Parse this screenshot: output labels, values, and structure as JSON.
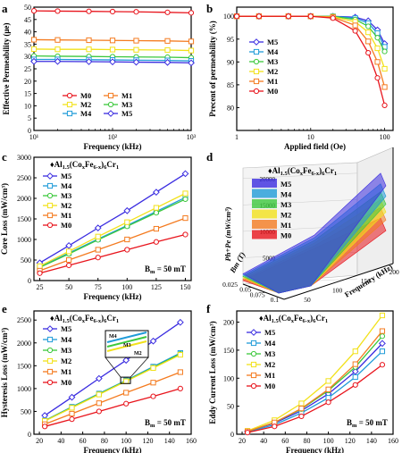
{
  "colors": {
    "M0": "#e8141c",
    "M1": "#f47b20",
    "M2": "#f2e11a",
    "M3": "#3cc83c",
    "M4": "#1f9bd8",
    "M5": "#3a2ce0"
  },
  "chart_data": [
    {
      "panel": "a",
      "type": "line",
      "xlabel": "Frequency (kHz)",
      "ylabel": "Effective Permeability (μe)",
      "xscale": "log",
      "xlim": [
        10,
        1000
      ],
      "ylim": [
        0,
        50
      ],
      "xticks": [
        "10¹",
        "10²",
        "10³"
      ],
      "yticks": [
        0,
        5,
        10,
        15,
        20,
        25,
        30,
        35,
        40,
        45,
        50
      ],
      "legend": {
        "placement": "bottom-center",
        "columns": 2,
        "items": [
          "M0",
          "M1",
          "M2",
          "M3",
          "M4",
          "M5"
        ]
      },
      "x": [
        10,
        20,
        50,
        100,
        200,
        500,
        1000
      ],
      "series": [
        {
          "name": "M0",
          "values": [
            48.5,
            48.4,
            48.3,
            48.2,
            48.1,
            47.9,
            47.7
          ]
        },
        {
          "name": "M1",
          "values": [
            36.8,
            36.7,
            36.6,
            36.5,
            36.4,
            36.3,
            36.1
          ]
        },
        {
          "name": "M2",
          "values": [
            33.0,
            32.9,
            32.9,
            32.8,
            32.7,
            32.6,
            32.4
          ]
        },
        {
          "name": "M3",
          "values": [
            30.2,
            30.1,
            30.0,
            29.9,
            29.8,
            29.7,
            29.5
          ]
        },
        {
          "name": "M4",
          "values": [
            28.8,
            28.8,
            28.7,
            28.6,
            28.5,
            28.4,
            28.2
          ]
        },
        {
          "name": "M5",
          "values": [
            28.0,
            28.0,
            27.9,
            27.8,
            27.7,
            27.6,
            27.4
          ]
        }
      ]
    },
    {
      "panel": "b",
      "type": "line",
      "xlabel": "Applied field (Oe)",
      "ylabel": "Precent of permeability (%)",
      "xscale": "log",
      "xlim": [
        1,
        130
      ],
      "ylim": [
        75,
        102
      ],
      "xticks": [
        "1",
        "10",
        "100"
      ],
      "yticks": [
        80,
        85,
        90,
        95,
        100
      ],
      "legend": {
        "placement": "left",
        "columns": 1,
        "items": [
          "M5",
          "M4",
          "M3",
          "M2",
          "M1",
          "M0"
        ]
      },
      "x": [
        1,
        2,
        5,
        10,
        20,
        40,
        60,
        80,
        100
      ],
      "series": [
        {
          "name": "M5",
          "values": [
            100,
            100,
            100,
            100,
            100,
            99.8,
            99.0,
            97.0,
            94.0
          ]
        },
        {
          "name": "M4",
          "values": [
            100,
            100,
            100,
            100,
            100,
            99.6,
            98.5,
            96.3,
            93.3
          ]
        },
        {
          "name": "M3",
          "values": [
            100,
            100,
            100,
            100,
            100,
            99.3,
            97.8,
            95.3,
            92.3
          ]
        },
        {
          "name": "M2",
          "values": [
            100,
            100,
            100,
            100,
            99.9,
            98.8,
            96.5,
            93.0,
            88.5
          ]
        },
        {
          "name": "M1",
          "values": [
            100,
            100,
            100,
            100,
            99.8,
            98.0,
            94.5,
            90.0,
            84.5
          ]
        },
        {
          "name": "M0",
          "values": [
            100,
            100,
            100,
            100,
            99.6,
            96.8,
            92.0,
            86.5,
            80.5
          ]
        }
      ]
    },
    {
      "panel": "c",
      "type": "line",
      "title": "♦Al1.5(CoxFe6-x)6Cr1",
      "annotation": "Bm = 50 mT",
      "xlabel": "Frequency (kHz)",
      "ylabel": "Core Loss (mW/cm³)",
      "xlim": [
        20,
        155
      ],
      "ylim": [
        0,
        3000
      ],
      "xticks": [
        25,
        50,
        75,
        100,
        125,
        150
      ],
      "yticks": [
        0,
        500,
        1000,
        1500,
        2000,
        2500,
        3000
      ],
      "legend": {
        "placement": "top-left",
        "columns": 1,
        "items": [
          "M5",
          "M4",
          "M3",
          "M2",
          "M1",
          "M0"
        ]
      },
      "x": [
        25,
        50,
        75,
        100,
        125,
        150
      ],
      "series": [
        {
          "name": "M5",
          "values": [
            430,
            850,
            1280,
            1700,
            2150,
            2600
          ]
        },
        {
          "name": "M4",
          "values": [
            330,
            670,
            1010,
            1340,
            1680,
            2020
          ]
        },
        {
          "name": "M3",
          "values": [
            320,
            650,
            990,
            1320,
            1650,
            1980
          ]
        },
        {
          "name": "M2",
          "values": [
            350,
            710,
            1070,
            1420,
            1770,
            2120
          ]
        },
        {
          "name": "M1",
          "values": [
            240,
            500,
            750,
            1000,
            1260,
            1520
          ]
        },
        {
          "name": "M0",
          "values": [
            180,
            370,
            560,
            750,
            940,
            1120
          ]
        }
      ]
    },
    {
      "panel": "d",
      "type": "area",
      "title": "♦Al1.5(CoxFe6-x)6Cr1",
      "zlabel": "Ph+Pe (mW/cm³)",
      "xlabel": "Bm (T)",
      "ylabel": "Frequency (kHz)",
      "zticks": [
        0,
        5000,
        10000,
        15000,
        20000
      ],
      "xticks": [
        0.025,
        0.05,
        0.075,
        0.1
      ],
      "yticks": [
        50,
        100,
        150,
        200
      ],
      "legend": {
        "placement": "left",
        "columns": 1,
        "items": [
          "M5",
          "M4",
          "M3",
          "M2",
          "M1",
          "M0"
        ]
      }
    },
    {
      "panel": "e",
      "type": "line",
      "title": "♦Al1.5(CoxFe6-x)6Cr1",
      "annotation": "Bm = 50 mT",
      "xlabel": "Frequency (kHz)",
      "ylabel": "Hysteresis Loss (mW/cm³)",
      "xlim": [
        15,
        160
      ],
      "ylim": [
        0,
        2700
      ],
      "xticks": [
        20,
        40,
        60,
        80,
        100,
        120,
        140,
        160
      ],
      "yticks": [
        0,
        500,
        1000,
        1500,
        2000,
        2500
      ],
      "inset_labels": [
        "M4",
        "M3",
        "M2"
      ],
      "legend": {
        "placement": "top-left",
        "columns": 1,
        "items": [
          "M5",
          "M4",
          "M3",
          "M2",
          "M1",
          "M0"
        ]
      },
      "x": [
        25,
        50,
        75,
        100,
        125,
        150
      ],
      "series": [
        {
          "name": "M5",
          "values": [
            410,
            810,
            1220,
            1620,
            2040,
            2450
          ]
        },
        {
          "name": "M4",
          "values": [
            300,
            600,
            890,
            1180,
            1480,
            1780
          ]
        },
        {
          "name": "M3",
          "values": [
            295,
            590,
            880,
            1170,
            1460,
            1760
          ]
        },
        {
          "name": "M2",
          "values": [
            290,
            580,
            870,
            1160,
            1450,
            1740
          ]
        },
        {
          "name": "M1",
          "values": [
            220,
            450,
            680,
            910,
            1130,
            1360
          ]
        },
        {
          "name": "M0",
          "values": [
            170,
            330,
            500,
            670,
            830,
            1000
          ]
        }
      ]
    },
    {
      "panel": "f",
      "type": "line",
      "title": "♦Al1.5(CoxFe6-x)6Cr1",
      "annotation": "Bm = 50 mT",
      "xlabel": "Frequency (kHz)",
      "ylabel": "Eddy Current Loss (mW/cm³)",
      "xlim": [
        15,
        160
      ],
      "ylim": [
        0,
        220
      ],
      "xticks": [
        20,
        40,
        60,
        80,
        100,
        120,
        140,
        160
      ],
      "yticks": [
        0,
        50,
        100,
        150,
        200
      ],
      "legend": {
        "placement": "top-left",
        "columns": 1,
        "items": [
          "M5",
          "M4",
          "M3",
          "M2",
          "M1",
          "M0"
        ]
      },
      "x": [
        25,
        50,
        75,
        100,
        125,
        150
      ],
      "series": [
        {
          "name": "M5",
          "values": [
            5,
            20,
            42,
            72,
            112,
            162
          ]
        },
        {
          "name": "M4",
          "values": [
            4,
            17,
            38,
            65,
            102,
            148
          ]
        },
        {
          "name": "M3",
          "values": [
            5,
            21,
            45,
            78,
            120,
            175
          ]
        },
        {
          "name": "M2",
          "values": [
            6,
            25,
            55,
            95,
            148,
            212
          ]
        },
        {
          "name": "M1",
          "values": [
            5,
            21,
            46,
            80,
            125,
            184
          ]
        },
        {
          "name": "M0",
          "values": [
            3,
            14,
            32,
            57,
            88,
            124
          ]
        }
      ]
    }
  ]
}
